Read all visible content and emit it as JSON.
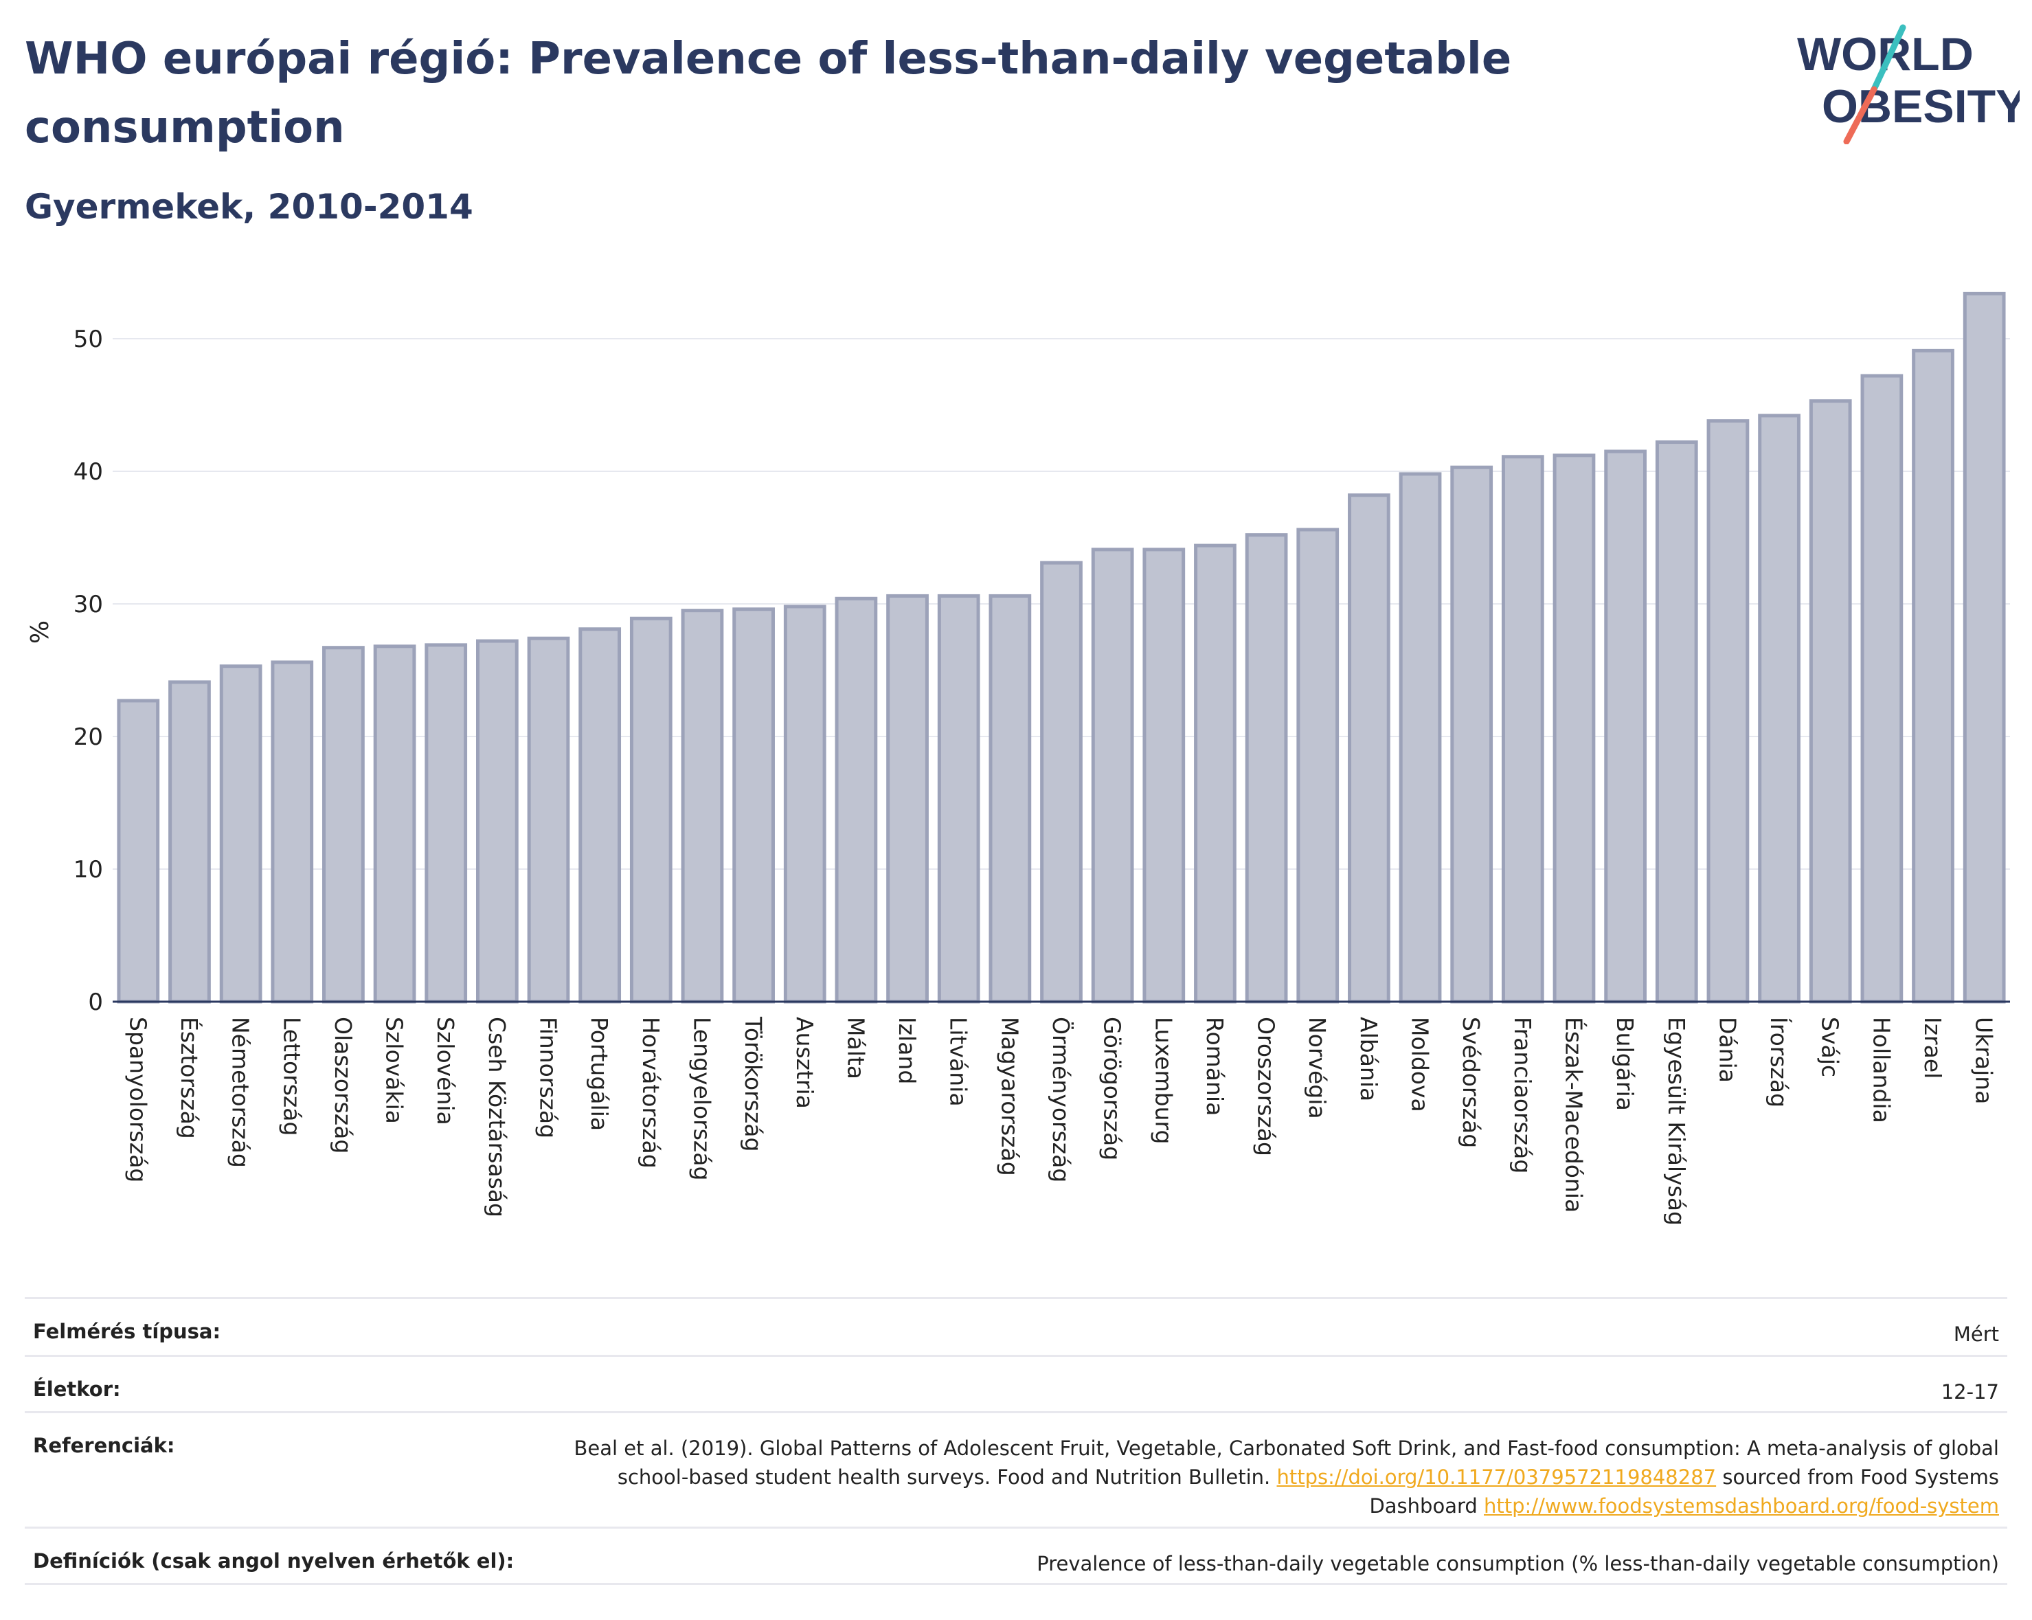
{
  "header": {
    "title": "WHO európai régió: Prevalence of less-than-daily vegetable consumption",
    "subtitle": "Gyermekek, 2010-2014"
  },
  "logo": {
    "line1": "WORLD",
    "line2": "OBESITY",
    "text_color": "#2b3960",
    "accent_teal": "#3bbfbf",
    "accent_coral": "#ee6b57"
  },
  "colors": {
    "bar_fill": "#bfc3d1",
    "bar_stroke": "#9ca2b9",
    "axis": "#2b3960",
    "grid": "#e6e8ef",
    "link": "#f0a91e"
  },
  "chart_data": {
    "type": "bar",
    "ylabel": "%",
    "ylim": [
      0,
      55
    ],
    "yticks": [
      0,
      10,
      20,
      30,
      40,
      50
    ],
    "grid": true,
    "categories": [
      "Spanyolország",
      "Észtország",
      "Németország",
      "Lettország",
      "Olaszország",
      "Szlovákia",
      "Szlovénia",
      "Cseh Köztársaság",
      "Finnország",
      "Portugália",
      "Horvátország",
      "Lengyelország",
      "Törökország",
      "Ausztria",
      "Málta",
      "Izland",
      "Litvánia",
      "Magyarország",
      "Örményország",
      "Görögország",
      "Luxemburg",
      "Románia",
      "Oroszország",
      "Norvégia",
      "Albánia",
      "Moldova",
      "Svédország",
      "Franciaország",
      "Észak-Macedónia",
      "Bulgária",
      "Egyesült Királyság",
      "Dánia",
      "Írország",
      "Svájc",
      "Hollandia",
      "Izrael",
      "Ukrajna"
    ],
    "values": [
      22.7,
      24.1,
      25.3,
      25.6,
      26.7,
      26.8,
      26.9,
      27.2,
      27.4,
      28.1,
      28.9,
      29.5,
      29.6,
      29.8,
      30.4,
      30.6,
      30.6,
      30.6,
      33.1,
      34.1,
      34.1,
      34.4,
      35.2,
      35.6,
      38.2,
      39.8,
      40.3,
      41.1,
      41.2,
      41.5,
      42.2,
      43.8,
      44.2,
      45.3,
      47.2,
      49.1,
      53.4
    ]
  },
  "info": {
    "survey_label": "Felmérés típusa:",
    "survey_value": "Mért",
    "age_label": "Életkor:",
    "age_value": "12-17",
    "ref_label": "Referenciák:",
    "ref_text1": "Beal et al. (2019). Global Patterns of Adolescent Fruit, Vegetable, Carbonated Soft Drink, and Fast-food consumption: A meta-analysis of global school-based student health surveys. Food and Nutrition Bulletin.",
    "ref_link1": "https://doi.org/10.1177/0379572119848287",
    "ref_text2": "sourced from Food Systems Dashboard",
    "ref_link2": "http://www.foodsystemsdashboard.org/food-system",
    "def_label": "Definíciók (csak angol nyelven érhetők el):",
    "def_value": "Prevalence of less-than-daily vegetable consumption (% less-than-daily vegetable consumption)"
  }
}
